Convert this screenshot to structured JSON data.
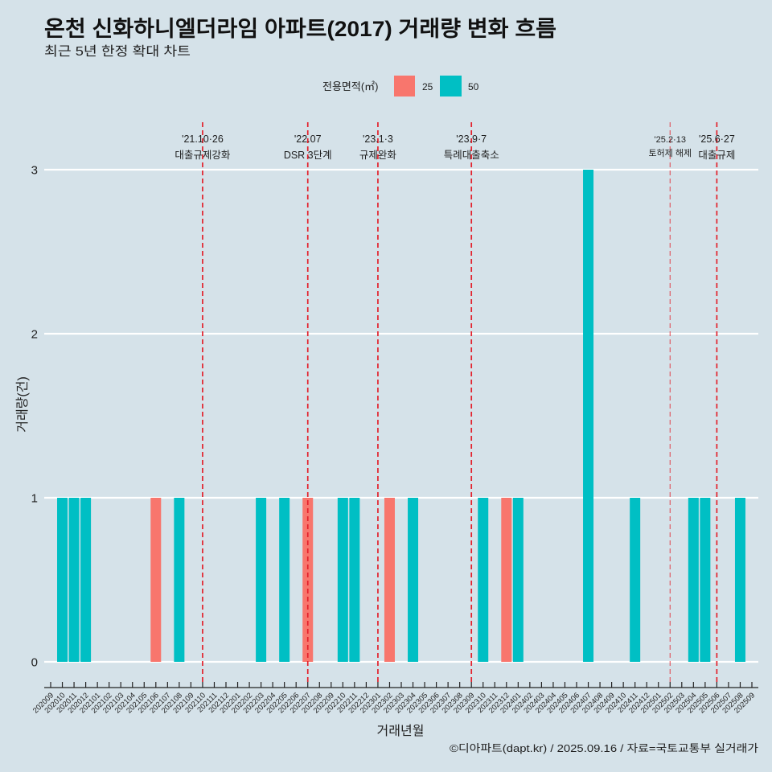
{
  "chart_data": {
    "type": "bar",
    "title": "온천 신화하니엘더라임 아파트(2017) 거래량 변화 흐름",
    "subtitle": "최근 5년 한정 확대 차트",
    "xlabel": "거래년월",
    "ylabel": "거래량(건)",
    "caption": "©디아파트(dapt.kr) / 2025.09.16 / 자료=국토교통부 실거래가",
    "ylim": [
      0,
      3
    ],
    "yticks": [
      0,
      1,
      2,
      3
    ],
    "grid": "horizontal-major",
    "legend": {
      "title": "전용면적(㎡)",
      "position": "top"
    },
    "categories": [
      "202009",
      "202010",
      "202011",
      "202012",
      "202101",
      "202102",
      "202103",
      "202104",
      "202105",
      "202106",
      "202107",
      "202108",
      "202109",
      "202110",
      "202111",
      "202112",
      "202201",
      "202202",
      "202203",
      "202204",
      "202205",
      "202206",
      "202207",
      "202208",
      "202209",
      "202210",
      "202211",
      "202212",
      "202301",
      "202302",
      "202303",
      "202304",
      "202305",
      "202306",
      "202307",
      "202308",
      "202309",
      "202310",
      "202311",
      "202312",
      "202401",
      "202402",
      "202403",
      "202404",
      "202405",
      "202406",
      "202407",
      "202408",
      "202409",
      "202410",
      "202411",
      "202412",
      "202501",
      "202502",
      "202503",
      "202504",
      "202505",
      "202506",
      "202507",
      "202508",
      "202509"
    ],
    "series": [
      {
        "name": "25",
        "color": "#F8766D",
        "values": [
          0,
          0,
          0,
          0,
          0,
          0,
          0,
          0,
          0,
          1,
          0,
          0,
          0,
          0,
          0,
          0,
          0,
          0,
          0,
          0,
          0,
          0,
          1,
          0,
          0,
          0,
          0,
          0,
          0,
          1,
          0,
          0,
          0,
          0,
          0,
          0,
          0,
          0,
          0,
          1,
          0,
          0,
          0,
          0,
          0,
          0,
          0,
          0,
          0,
          0,
          0,
          0,
          0,
          0,
          0,
          0,
          0,
          0,
          0,
          0,
          0
        ]
      },
      {
        "name": "50",
        "color": "#00BFC4",
        "values": [
          0,
          1,
          1,
          1,
          0,
          0,
          0,
          0,
          0,
          0,
          0,
          1,
          0,
          0,
          0,
          0,
          0,
          0,
          1,
          0,
          1,
          0,
          0,
          0,
          0,
          1,
          1,
          0,
          0,
          0,
          0,
          1,
          0,
          0,
          0,
          0,
          0,
          1,
          0,
          0,
          1,
          0,
          0,
          0,
          0,
          0,
          3,
          0,
          0,
          0,
          1,
          0,
          0,
          0,
          0,
          1,
          1,
          0,
          0,
          1,
          0
        ]
      }
    ],
    "annotations": [
      {
        "month": "202110",
        "date": "'21.10·26",
        "label": "대출규제강화",
        "emphasis": "major"
      },
      {
        "month": "202207",
        "date": "'22.07",
        "label": "DSR 3단계",
        "emphasis": "major"
      },
      {
        "month": "202301",
        "date": "'23.1·3",
        "label": "규제완화",
        "emphasis": "major"
      },
      {
        "month": "202309",
        "date": "'23.9·7",
        "label": "특례대출축소",
        "emphasis": "major"
      },
      {
        "month": "202502",
        "date": "'25.2·13",
        "label": "토허제 해제",
        "emphasis": "minor"
      },
      {
        "month": "202506",
        "date": "'25.6·27",
        "label": "대출규제",
        "emphasis": "major"
      }
    ],
    "annotation_color": "#E3202B"
  }
}
